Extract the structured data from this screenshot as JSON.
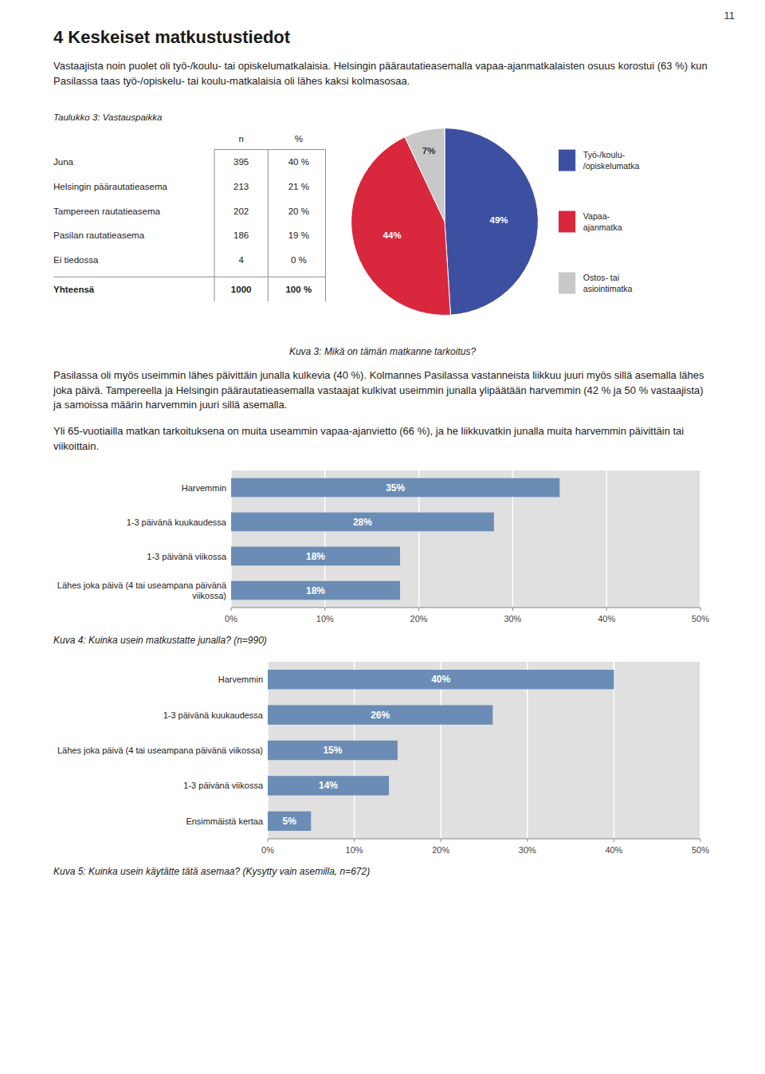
{
  "page_number": "11",
  "title": "4   Keskeiset matkustustiedot",
  "paragraphs": [
    "Vastaajista noin puolet oli työ-/koulu- tai opiskelumatkalaisia. Helsingin päärautatieasemalla vapaa-ajanmatkalaisten osuus korostui (63 %) kun Pasilassa taas työ-/opiskelu- tai koulu-matkalaisia oli lähes kaksi kolmasosaa.",
    "Pasilassa oli myös useimmin lähes päivittäin junalla kulkevia (40 %). Kolmannes Pasilassa vastanneista liikkuu juuri myös sillä asemalla lähes joka päivä. Tampereella ja Helsingin päärautatieasemalla vastaajat kulkivat useimmin junalla ylipäätään harvemmin (42 % ja 50 % vastaajista) ja samoissa määrin harvemmin juuri sillä asemalla.",
    "Yli 65-vuotiailla matkan tarkoituksena on muita useammin vapaa-ajanvietto (66 %), ja he liikkuvatkin junalla muita harvemmin päivittäin tai viikoittain."
  ],
  "chart_data": [
    {
      "type": "table",
      "title": "Taulukko 3: Vastauspaikka",
      "categories": [
        "Juna",
        "Helsingin päärautatieasema",
        "Tampereen rautatieasema",
        "Pasilan rautatieasema",
        "Ei tiedossa",
        "Yhteensä"
      ],
      "series": [
        {
          "name": "n",
          "values": [
            395,
            213,
            202,
            186,
            4,
            1000
          ]
        },
        {
          "name": "%",
          "values": [
            40,
            21,
            20,
            19,
            0,
            100
          ],
          "value_labels": [
            "40 %",
            "21 %",
            "20 %",
            "19 %",
            "0 %",
            "100 %"
          ]
        }
      ]
    },
    {
      "type": "pie",
      "title": "Kuva 3: Mikä on tämän matkanne tarkoitus?",
      "categories": [
        "Työ-/koulu-\n/opiskelumatka",
        "Vapaa-\najanmatka",
        "Ostos- tai\nasiointimatka"
      ],
      "values": [
        49,
        44,
        7
      ],
      "value_labels": [
        "49%",
        "44%",
        "7%"
      ],
      "colors": [
        "#3d4fa0",
        "#d9273d",
        "#c8c8c8"
      ],
      "data_labels": true,
      "legend": "right"
    },
    {
      "type": "bar",
      "orientation": "horizontal",
      "title": "Kuva 4: Kuinka usein matkustatte junalla? (n=990)",
      "categories": [
        "Harvemmin",
        "1-3 päivänä kuukaudessa",
        "1-3 päivänä viikossa",
        "Lähes joka päivä (4 tai useampana päivänä\nviikossa)"
      ],
      "values": [
        35,
        28,
        18,
        18
      ],
      "value_labels": [
        "35%",
        "28%",
        "18%",
        "18%"
      ],
      "color": "#6b8db5",
      "xlim": [
        0,
        50
      ],
      "xticks": [
        {
          "value": 0,
          "label": "0%"
        },
        {
          "value": 10,
          "label": "10%"
        },
        {
          "value": 20,
          "label": "20%"
        },
        {
          "value": 30,
          "label": "30%"
        },
        {
          "value": 40,
          "label": "40%"
        },
        {
          "value": 50,
          "label": "50%"
        }
      ],
      "grid": true,
      "data_labels": true
    },
    {
      "type": "bar",
      "orientation": "horizontal",
      "title": "Kuva 5: Kuinka usein käytätte tätä asemaa? (Kysytty vain asemilla, n=672)",
      "categories": [
        "Harvemmin",
        "1-3 päivänä kuukaudessa",
        "Lähes joka päivä (4 tai useampana päivänä viikossa)",
        "1-3 päivänä viikossa",
        "Ensimmäistä kertaa"
      ],
      "values": [
        40,
        26,
        15,
        14,
        5
      ],
      "value_labels": [
        "40%",
        "26%",
        "15%",
        "14%",
        "5%"
      ],
      "color": "#6b8db5",
      "xlim": [
        0,
        50
      ],
      "xticks": [
        {
          "value": 0,
          "label": "0%"
        },
        {
          "value": 10,
          "label": "10%"
        },
        {
          "value": 20,
          "label": "20%"
        },
        {
          "value": 30,
          "label": "30%"
        },
        {
          "value": 40,
          "label": "40%"
        },
        {
          "value": 50,
          "label": "50%"
        }
      ],
      "grid": true,
      "data_labels": true
    }
  ]
}
